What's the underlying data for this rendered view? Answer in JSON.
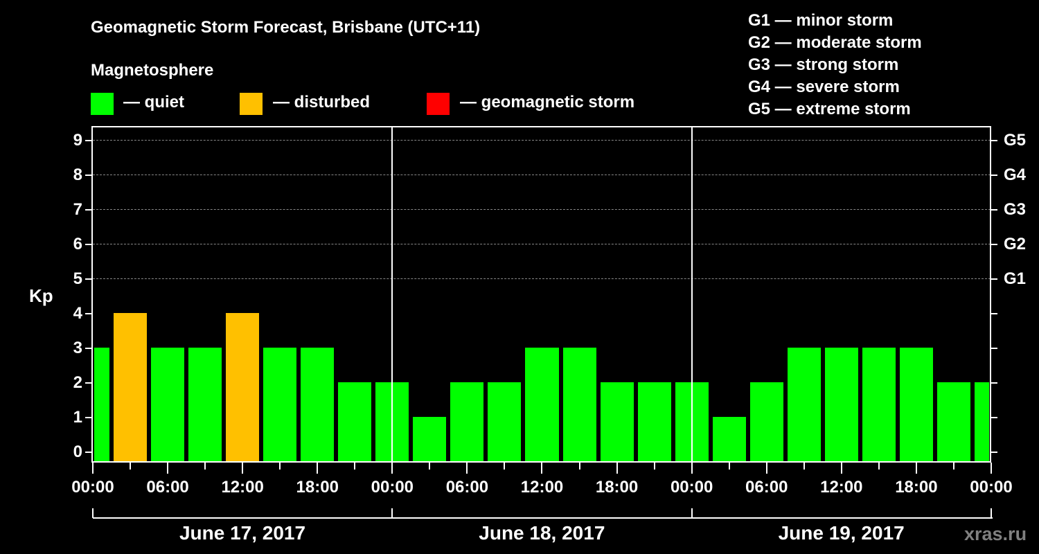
{
  "header": {
    "title": "Geomagnetic Storm Forecast, Brisbane (UTC+11)",
    "subtitle": "Magnetosphere"
  },
  "legend": [
    {
      "label": "— quiet",
      "color": "#00ff00"
    },
    {
      "label": "— disturbed",
      "color": "#ffc000"
    },
    {
      "label": "— geomagnetic storm",
      "color": "#ff0000"
    }
  ],
  "g_scale": [
    "G1 — minor storm",
    "G2 — moderate storm",
    "G3 — strong storm",
    "G4 — severe storm",
    "G5 — extreme storm"
  ],
  "axis": {
    "ylabel": "Kp",
    "yticks": [
      "0",
      "1",
      "2",
      "3",
      "4",
      "5",
      "6",
      "7",
      "8",
      "9"
    ],
    "right_ticks": [
      "G1",
      "G2",
      "G3",
      "G4",
      "G5"
    ],
    "xticks": [
      "00:00",
      "06:00",
      "12:00",
      "18:00",
      "00:00",
      "06:00",
      "12:00",
      "18:00",
      "00:00",
      "06:00",
      "12:00",
      "18:00",
      "00:00"
    ],
    "days": [
      "June 17, 2017",
      "June 18, 2017",
      "June 19, 2017"
    ]
  },
  "watermark": "xras.ru",
  "chart_data": {
    "type": "bar",
    "title": "Geomagnetic Storm Forecast, Brisbane (UTC+11)",
    "subtitle": "Magnetosphere",
    "xlabel": "",
    "ylabel": "Kp",
    "ylim": [
      0,
      9
    ],
    "grid": "horizontal dashed at Kp 5-9",
    "legend_position": "top",
    "legend": [
      "quiet",
      "disturbed",
      "geomagnetic storm"
    ],
    "colors": {
      "quiet": "#00ff00",
      "disturbed": "#ffc000",
      "storm": "#ff0000"
    },
    "right_axis": {
      "5": "G1",
      "6": "G2",
      "7": "G3",
      "8": "G4",
      "9": "G5"
    },
    "categories": [
      "Jun 17 00:00",
      "Jun 17 03:00",
      "Jun 17 06:00",
      "Jun 17 09:00",
      "Jun 17 12:00",
      "Jun 17 15:00",
      "Jun 17 18:00",
      "Jun 17 21:00",
      "Jun 18 00:00",
      "Jun 18 03:00",
      "Jun 18 06:00",
      "Jun 18 09:00",
      "Jun 18 12:00",
      "Jun 18 15:00",
      "Jun 18 18:00",
      "Jun 18 21:00",
      "Jun 19 00:00",
      "Jun 19 03:00",
      "Jun 19 06:00",
      "Jun 19 09:00",
      "Jun 19 12:00",
      "Jun 19 15:00",
      "Jun 19 18:00",
      "Jun 19 21:00",
      "Jun 20 00:00"
    ],
    "values": [
      3,
      4,
      3,
      3,
      4,
      3,
      3,
      2,
      2,
      1,
      2,
      2,
      3,
      3,
      2,
      2,
      2,
      1,
      2,
      3,
      3,
      3,
      3,
      2,
      2
    ],
    "status": [
      "quiet",
      "disturbed",
      "quiet",
      "quiet",
      "disturbed",
      "quiet",
      "quiet",
      "quiet",
      "quiet",
      "quiet",
      "quiet",
      "quiet",
      "quiet",
      "quiet",
      "quiet",
      "quiet",
      "quiet",
      "quiet",
      "quiet",
      "quiet",
      "quiet",
      "quiet",
      "quiet",
      "quiet",
      "quiet"
    ]
  }
}
